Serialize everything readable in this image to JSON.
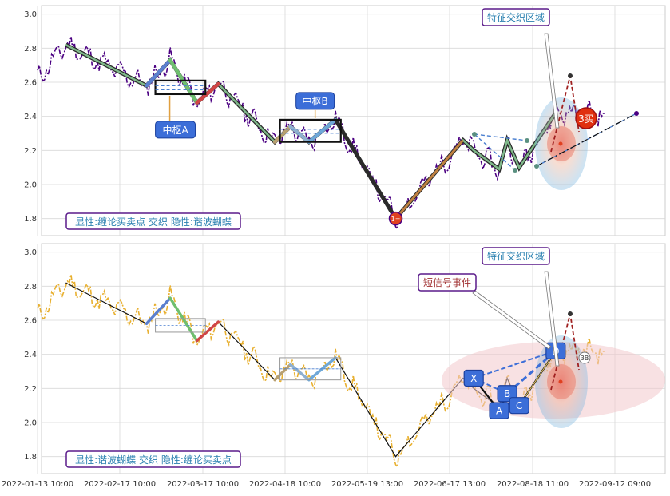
{
  "chart_data": [
    {
      "type": "line",
      "ylim": [
        1.7,
        3.05
      ],
      "y_ticks": [
        "3.0",
        "2.8",
        "2.6",
        "2.4",
        "2.2",
        "2.0",
        "1.8"
      ],
      "y_tick_values": [
        3.0,
        2.8,
        2.6,
        2.4,
        2.2,
        2.0,
        1.8
      ],
      "grid": true,
      "price_color": "#4b0082",
      "bi": [
        {
          "x": "2022-01-25",
          "y": 2.82
        },
        {
          "x": "2022-02-26",
          "y": 2.58
        },
        {
          "x": "2022-03-06",
          "y": 2.73
        },
        {
          "x": "2022-03-15",
          "y": 2.48
        },
        {
          "x": "2022-03-23",
          "y": 2.59
        },
        {
          "x": "2022-04-14",
          "y": 2.25
        },
        {
          "x": "2022-04-20",
          "y": 2.34
        },
        {
          "x": "2022-04-27",
          "y": 2.25
        },
        {
          "x": "2022-05-07",
          "y": 2.38
        },
        {
          "x": "2022-05-29",
          "y": 1.8
        },
        {
          "x": "2022-06-27",
          "y": 2.26
        },
        {
          "x": "2022-07-05",
          "y": 2.2
        },
        {
          "x": "2022-07-24",
          "y": 2.09
        },
        {
          "x": "2022-07-30",
          "y": 2.26
        },
        {
          "x": "2022-08-08",
          "y": 2.1
        },
        {
          "x": "2022-08-25",
          "y": 2.42
        }
      ],
      "zhongshu": [
        {
          "name": "中枢A",
          "x0": "2022-03-01",
          "x1": "2022-03-18",
          "low": 2.53,
          "high": 2.61
        },
        {
          "name": "中枢B",
          "x0": "2022-04-16",
          "x1": "2022-05-09",
          "low": 2.25,
          "high": 2.38
        }
      ],
      "labels": {
        "zhongshu_a": "中枢A",
        "zhongshu_b": "中枢B",
        "buy1": "1=",
        "buy3": "3买",
        "feature_region": "特征交织区域"
      },
      "buy_points": [
        {
          "x": "2022-05-29",
          "y": 1.8,
          "label": "1="
        },
        {
          "x": "2022-08-18",
          "y": 2.35,
          "label": "3买"
        }
      ],
      "caption": "显性:缠论买卖点 交织 隐性:谐波蝴蝶"
    },
    {
      "type": "line",
      "ylim": [
        1.7,
        3.05
      ],
      "y_ticks": [
        "3.0",
        "2.8",
        "2.6",
        "2.4",
        "2.2",
        "2.0",
        "1.8"
      ],
      "y_tick_values": [
        3.0,
        2.8,
        2.6,
        2.4,
        2.2,
        2.0,
        1.8
      ],
      "grid": true,
      "price_color": "#e8b030",
      "butterfly": [
        {
          "name": "X",
          "x": "2022-07-05",
          "y": 2.26
        },
        {
          "name": "A",
          "x": "2022-07-24",
          "y": 2.07
        },
        {
          "name": "B",
          "x": "2022-07-30",
          "y": 2.17
        },
        {
          "name": "C",
          "x": "2022-08-08",
          "y": 2.1
        },
        {
          "name": "D",
          "x": "2022-08-25",
          "y": 2.42
        }
      ],
      "labels": {
        "short_signal": "短信号事件",
        "feature_region": "特征交织区域",
        "mark_3b": "3B"
      },
      "caption": "显性:谐波蝴蝶 交织 隐性:缠论买卖点"
    }
  ],
  "x_axis": {
    "tick_labels": [
      "2022-01-13 10:00",
      "2022-02-17 10:00",
      "2022-03-17 10:00",
      "2022-04-18 10:00",
      "2022-05-19 13:00",
      "2022-06-17 13:00",
      "2022-08-18 11:00",
      "2022-09-12 09:00"
    ]
  }
}
